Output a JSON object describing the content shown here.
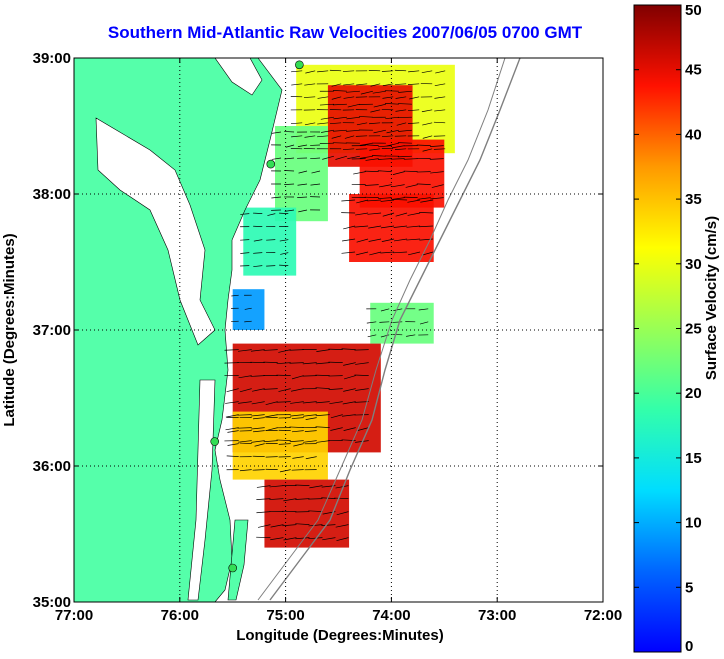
{
  "chart_data": {
    "type": "heatmap",
    "title": "Southern Mid-Atlantic Raw Velocities 2007/06/05 0700 GMT",
    "xlabel": "Longitude (Degrees:Minutes)",
    "ylabel": "Latitude (Degrees:Minutes)",
    "colorbar_label": "Surface Velocity (cm/s)",
    "xlim": [
      -77,
      -72
    ],
    "ylim": [
      35,
      39
    ],
    "clim": [
      0,
      50
    ],
    "x_ticks": [
      {
        "value": -77,
        "label": "77:00"
      },
      {
        "value": -76,
        "label": "76:00"
      },
      {
        "value": -75,
        "label": "75:00"
      },
      {
        "value": -74,
        "label": "74:00"
      },
      {
        "value": -73,
        "label": "73:00"
      },
      {
        "value": -72,
        "label": "72:00"
      }
    ],
    "y_ticks": [
      {
        "value": 35,
        "label": "35:00"
      },
      {
        "value": 36,
        "label": "36:00"
      },
      {
        "value": 37,
        "label": "37:00"
      },
      {
        "value": 38,
        "label": "38:00"
      },
      {
        "value": 39,
        "label": "39:00"
      }
    ],
    "colorbar_ticks": [
      {
        "value": 0,
        "label": "0"
      },
      {
        "value": 5,
        "label": "5"
      },
      {
        "value": 10,
        "label": "10"
      },
      {
        "value": 15,
        "label": "15"
      },
      {
        "value": 20,
        "label": "20"
      },
      {
        "value": 25,
        "label": "25"
      },
      {
        "value": 30,
        "label": "30"
      },
      {
        "value": 35,
        "label": "35"
      },
      {
        "value": 40,
        "label": "40"
      },
      {
        "value": 45,
        "label": "45"
      },
      {
        "value": 50,
        "label": "50"
      }
    ],
    "grid": true,
    "colormap": "jet",
    "colors": {
      "title": "#0000ff",
      "land": "#55ffaa",
      "ocean": "#ffffff",
      "grid": "#000000",
      "bathymetry": "#7f7f7f",
      "station_marker": "#33dd55"
    },
    "velocity_regions": [
      {
        "lon": [
          -74.9,
          -73.4
        ],
        "lat": [
          38.3,
          38.95
        ],
        "speed": 30
      },
      {
        "lon": [
          -74.6,
          -73.8
        ],
        "lat": [
          38.2,
          38.8
        ],
        "speed": 45
      },
      {
        "lon": [
          -74.3,
          -73.5
        ],
        "lat": [
          37.9,
          38.4
        ],
        "speed": 44
      },
      {
        "lon": [
          -74.4,
          -73.6
        ],
        "lat": [
          37.5,
          38.0
        ],
        "speed": 44
      },
      {
        "lon": [
          -75.1,
          -74.6
        ],
        "lat": [
          37.8,
          38.5
        ],
        "speed": 22
      },
      {
        "lon": [
          -75.4,
          -74.9
        ],
        "lat": [
          37.4,
          37.9
        ],
        "speed": 18
      },
      {
        "lon": [
          -75.5,
          -75.2
        ],
        "lat": [
          37.0,
          37.3
        ],
        "speed": 9
      },
      {
        "lon": [
          -74.2,
          -73.6
        ],
        "lat": [
          36.9,
          37.2
        ],
        "speed": 22
      },
      {
        "lon": [
          -75.5,
          -74.1
        ],
        "lat": [
          36.1,
          36.9
        ],
        "speed": 46
      },
      {
        "lon": [
          -75.5,
          -74.6
        ],
        "lat": [
          35.9,
          36.4
        ],
        "speed": 34
      },
      {
        "lon": [
          -75.2,
          -74.4
        ],
        "lat": [
          35.4,
          35.9
        ],
        "speed": 46
      }
    ],
    "stations": [
      {
        "lon": -74.87,
        "lat": 38.95
      },
      {
        "lon": -75.14,
        "lat": 38.22
      },
      {
        "lon": -75.67,
        "lat": 36.18
      },
      {
        "lon": -75.5,
        "lat": 35.25
      }
    ]
  }
}
